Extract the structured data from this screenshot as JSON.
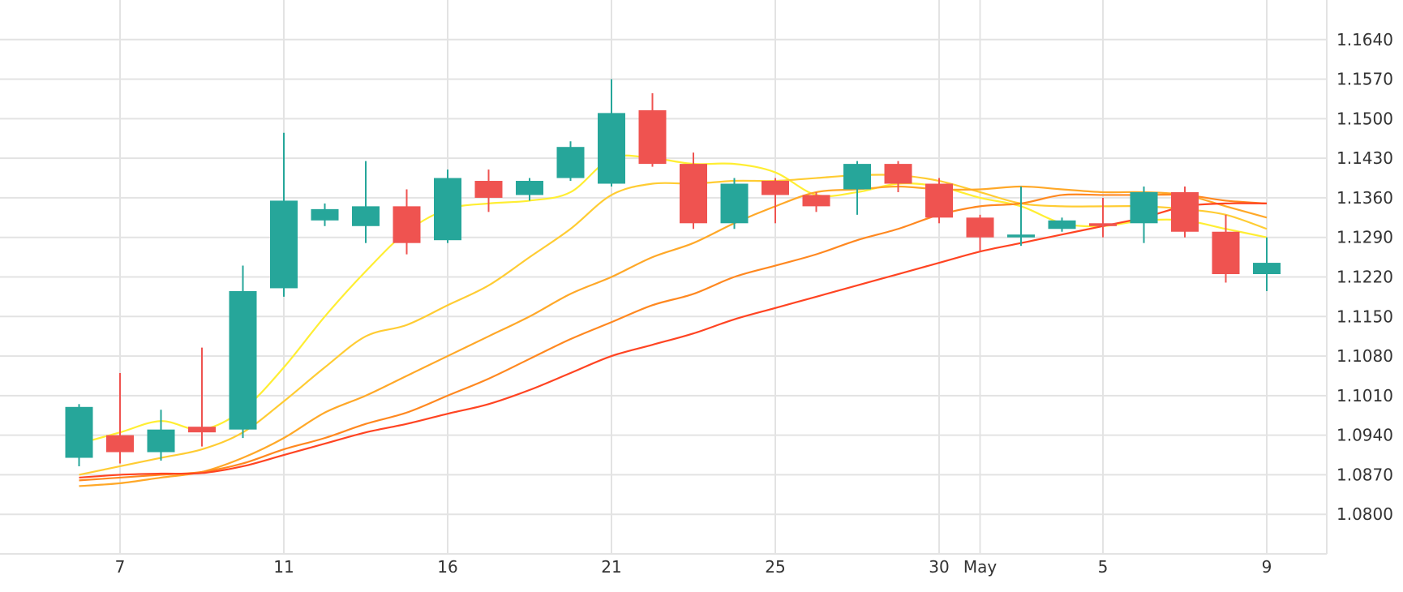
{
  "chart_data": {
    "type": "candlestick",
    "title": "",
    "xlabel": "",
    "ylabel": "",
    "ylim": [
      1.073,
      1.171
    ],
    "y_ticks": [
      "1.0800",
      "1.0870",
      "1.0940",
      "1.1010",
      "1.1080",
      "1.1150",
      "1.1220",
      "1.1290",
      "1.1360",
      "1.1430",
      "1.1500",
      "1.1570",
      "1.1640"
    ],
    "x_ticks": [
      {
        "label": "7",
        "index": 1
      },
      {
        "label": "11",
        "index": 5
      },
      {
        "label": "16",
        "index": 9
      },
      {
        "label": "21",
        "index": 13
      },
      {
        "label": "25",
        "index": 17
      },
      {
        "label": "30",
        "index": 21
      },
      {
        "label": "May",
        "index": 22
      },
      {
        "label": "5",
        "index": 25
      },
      {
        "label": "9",
        "index": 29
      }
    ],
    "colors": {
      "up": "#26a69a",
      "down": "#ef5350",
      "grid": "#e3e3e3",
      "text": "#333333"
    },
    "candles": [
      {
        "open": 1.09,
        "high": 1.0995,
        "low": 1.0885,
        "close": 1.099
      },
      {
        "open": 1.094,
        "high": 1.105,
        "low": 1.089,
        "close": 1.091
      },
      {
        "open": 1.091,
        "high": 1.0985,
        "low": 1.0895,
        "close": 1.095
      },
      {
        "open": 1.0955,
        "high": 1.1095,
        "low": 1.092,
        "close": 1.0945
      },
      {
        "open": 1.095,
        "high": 1.124,
        "low": 1.0935,
        "close": 1.1195
      },
      {
        "open": 1.12,
        "high": 1.1475,
        "low": 1.1185,
        "close": 1.1355
      },
      {
        "open": 1.132,
        "high": 1.135,
        "low": 1.131,
        "close": 1.134
      },
      {
        "open": 1.131,
        "high": 1.1425,
        "low": 1.128,
        "close": 1.1345
      },
      {
        "open": 1.1345,
        "high": 1.1375,
        "low": 1.126,
        "close": 1.128
      },
      {
        "open": 1.1285,
        "high": 1.141,
        "low": 1.128,
        "close": 1.1395
      },
      {
        "open": 1.139,
        "high": 1.141,
        "low": 1.1335,
        "close": 1.136
      },
      {
        "open": 1.1365,
        "high": 1.1395,
        "low": 1.1355,
        "close": 1.139
      },
      {
        "open": 1.1395,
        "high": 1.146,
        "low": 1.139,
        "close": 1.145
      },
      {
        "open": 1.1385,
        "high": 1.157,
        "low": 1.138,
        "close": 1.151
      },
      {
        "open": 1.1515,
        "high": 1.1545,
        "low": 1.1415,
        "close": 1.142
      },
      {
        "open": 1.142,
        "high": 1.144,
        "low": 1.1305,
        "close": 1.1315
      },
      {
        "open": 1.1315,
        "high": 1.1395,
        "low": 1.1305,
        "close": 1.1385
      },
      {
        "open": 1.139,
        "high": 1.1395,
        "low": 1.1315,
        "close": 1.1365
      },
      {
        "open": 1.1365,
        "high": 1.137,
        "low": 1.1335,
        "close": 1.1345
      },
      {
        "open": 1.1375,
        "high": 1.1425,
        "low": 1.133,
        "close": 1.142
      },
      {
        "open": 1.142,
        "high": 1.1425,
        "low": 1.137,
        "close": 1.1385
      },
      {
        "open": 1.1385,
        "high": 1.1395,
        "low": 1.1315,
        "close": 1.1325
      },
      {
        "open": 1.1325,
        "high": 1.133,
        "low": 1.1265,
        "close": 1.129
      },
      {
        "open": 1.129,
        "high": 1.138,
        "low": 1.1275,
        "close": 1.1295
      },
      {
        "open": 1.1305,
        "high": 1.1325,
        "low": 1.13,
        "close": 1.132
      },
      {
        "open": 1.1315,
        "high": 1.136,
        "low": 1.129,
        "close": 1.131
      },
      {
        "open": 1.1315,
        "high": 1.138,
        "low": 1.128,
        "close": 1.137
      },
      {
        "open": 1.137,
        "high": 1.138,
        "low": 1.129,
        "close": 1.13
      },
      {
        "open": 1.13,
        "high": 1.133,
        "low": 1.121,
        "close": 1.1225
      },
      {
        "open": 1.1225,
        "high": 1.129,
        "low": 1.1195,
        "close": 1.1245
      }
    ],
    "moving_averages": [
      {
        "color": "#ffee33",
        "values": [
          1.0925,
          1.0945,
          1.0965,
          1.095,
          1.0985,
          1.106,
          1.115,
          1.123,
          1.13,
          1.134,
          1.135,
          1.1355,
          1.137,
          1.143,
          1.143,
          1.142,
          1.142,
          1.1405,
          1.1365,
          1.137,
          1.1385,
          1.138,
          1.136,
          1.1345,
          1.1315,
          1.131,
          1.132,
          1.132,
          1.1305,
          1.129
        ]
      },
      {
        "color": "#ffcc33",
        "values": [
          1.087,
          1.0885,
          1.09,
          1.0915,
          1.0945,
          1.1,
          1.106,
          1.1115,
          1.1135,
          1.117,
          1.1205,
          1.1255,
          1.1305,
          1.1365,
          1.1385,
          1.1385,
          1.139,
          1.139,
          1.1395,
          1.14,
          1.14,
          1.139,
          1.137,
          1.135,
          1.1345,
          1.1345,
          1.1345,
          1.134,
          1.133,
          1.1305
        ]
      },
      {
        "color": "#ffa828",
        "values": [
          1.085,
          1.0855,
          1.0865,
          1.0875,
          1.09,
          1.0935,
          1.098,
          1.101,
          1.1045,
          1.108,
          1.1115,
          1.115,
          1.119,
          1.122,
          1.1255,
          1.128,
          1.1315,
          1.1345,
          1.137,
          1.1375,
          1.138,
          1.1375,
          1.1375,
          1.138,
          1.1375,
          1.137,
          1.137,
          1.1365,
          1.1345,
          1.1325
        ]
      },
      {
        "color": "#ff8820",
        "values": [
          1.086,
          1.0865,
          1.087,
          1.0875,
          1.089,
          1.0915,
          1.0935,
          1.096,
          1.098,
          1.101,
          1.104,
          1.1075,
          1.111,
          1.114,
          1.117,
          1.119,
          1.122,
          1.124,
          1.126,
          1.1285,
          1.1305,
          1.133,
          1.1345,
          1.135,
          1.1365,
          1.1365,
          1.1365,
          1.1365,
          1.1355,
          1.135
        ]
      },
      {
        "color": "#ff4422",
        "values": [
          1.0865,
          1.087,
          1.0872,
          1.0873,
          1.0885,
          1.0905,
          1.0925,
          1.0945,
          1.096,
          1.0978,
          1.0995,
          1.102,
          1.105,
          1.108,
          1.11,
          1.112,
          1.1145,
          1.1165,
          1.1185,
          1.1205,
          1.1225,
          1.1245,
          1.1265,
          1.128,
          1.1295,
          1.131,
          1.1325,
          1.1345,
          1.135,
          1.135
        ]
      }
    ]
  }
}
